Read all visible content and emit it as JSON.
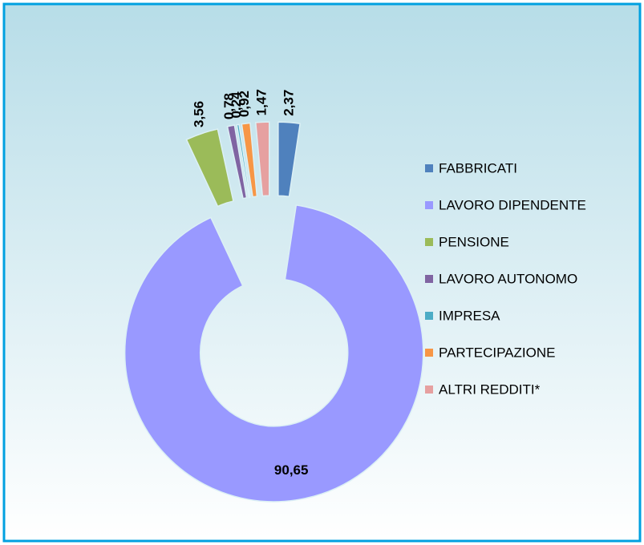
{
  "chart_data": {
    "type": "donut",
    "categories": [
      "FABBRICATI",
      "LAVORO DIPENDENTE",
      "PENSIONE",
      "LAVORO AUTONOMO",
      "IMPRESA",
      "PARTECIPAZIONE",
      "ALTRI REDDITI*"
    ],
    "values": [
      2.37,
      90.65,
      3.56,
      0.78,
      0.24,
      0.92,
      1.47
    ],
    "value_labels": [
      "2,37",
      "90,65",
      "3,56",
      "0,78",
      "0,24",
      "0,92",
      "1,47"
    ],
    "colors": [
      "#4f81bd",
      "#9999ff",
      "#9bbb59",
      "#8064a2",
      "#4bacc6",
      "#f79646",
      "#e6a0a0"
    ],
    "legend": "right"
  }
}
